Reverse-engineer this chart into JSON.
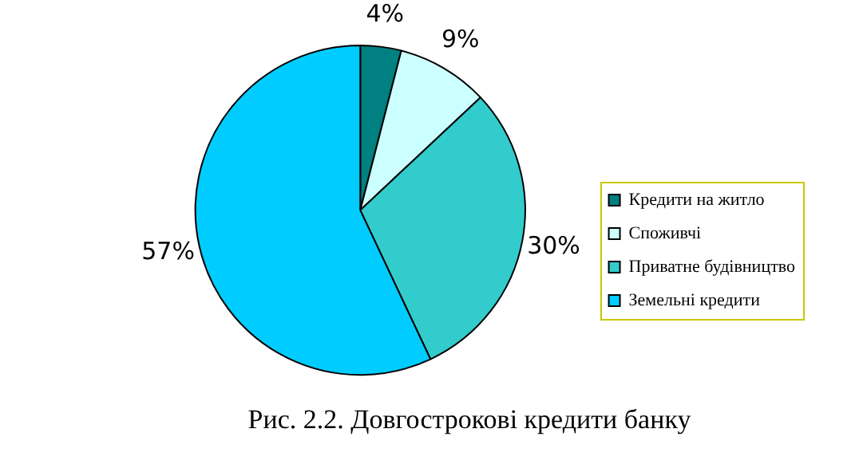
{
  "chart_data": {
    "type": "pie",
    "title": "Рис. 2.2. Довгострокові кредити банку",
    "categories": [
      "Кредити на житло",
      "Споживчі",
      "Приватне будівництво",
      "Земельні кредити"
    ],
    "values": [
      4,
      9,
      30,
      57
    ],
    "value_labels": [
      "4%",
      "9%",
      "30%",
      "57%"
    ],
    "colors": [
      "#008080",
      "#ccffff",
      "#33cccc",
      "#00ccff"
    ],
    "legend": "right"
  }
}
